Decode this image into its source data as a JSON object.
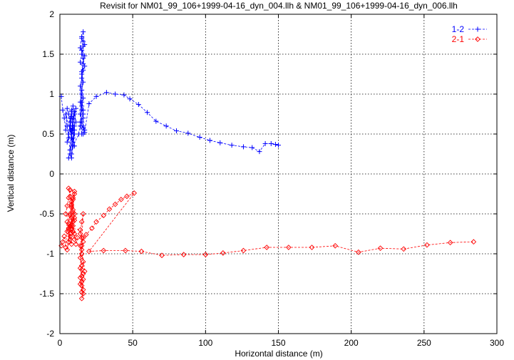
{
  "chart_data": {
    "type": "line",
    "title": "Revisit for NM01_99_106+1999-04-16_dyn_004.llh & NM01_99_106+1999-04-16_dyn_006.llh",
    "xlabel": "Horizontal distance (m)",
    "ylabel": "Vertical distance (m)",
    "xlim": [
      0,
      300
    ],
    "ylim": [
      -2,
      2
    ],
    "x_ticks": [
      0,
      50,
      100,
      150,
      200,
      250,
      300
    ],
    "y_ticks": [
      -2,
      -1.5,
      -1,
      -0.5,
      0,
      0.5,
      1,
      1.5,
      2
    ],
    "x_tick_labels": [
      "0",
      "50",
      "100",
      "150",
      "200",
      "250",
      "300"
    ],
    "y_tick_labels": [
      "-2",
      "-1.5",
      "-1",
      "-0.5",
      "0",
      "0.5",
      "1",
      "1.5",
      "2"
    ],
    "grid": true,
    "legend_position": "top-right",
    "series": [
      {
        "name": "1-2",
        "color": "#0000ff",
        "marker": "plus",
        "x": [
          1,
          2,
          3,
          4,
          5,
          6,
          7,
          8,
          9,
          10,
          11,
          6,
          7,
          8,
          9,
          10,
          5,
          6,
          7,
          8,
          9,
          10,
          4,
          5,
          6,
          7,
          8,
          9,
          7,
          8,
          9,
          10,
          7,
          8,
          9,
          6,
          7,
          8,
          9,
          10,
          11,
          8,
          9,
          10,
          7,
          8,
          9,
          13,
          14,
          15,
          14,
          15,
          16,
          14,
          15,
          14,
          15,
          16,
          14,
          15,
          16,
          15,
          16,
          17,
          15,
          16,
          17,
          15,
          16,
          15,
          16,
          15,
          16,
          16,
          17,
          16,
          15,
          14,
          15,
          16,
          17,
          14,
          15,
          16,
          15,
          16,
          15,
          16,
          17,
          20,
          25,
          32,
          38,
          44,
          48,
          54,
          60,
          66,
          73,
          80,
          88,
          96,
          103,
          110,
          118,
          126,
          132,
          137,
          141,
          145,
          148,
          150
        ],
        "y": [
          0.97,
          0.8,
          0.7,
          0.55,
          0.82,
          0.75,
          0.6,
          0.45,
          0.7,
          0.78,
          0.65,
          0.5,
          0.55,
          0.72,
          0.85,
          0.6,
          0.4,
          0.5,
          0.65,
          0.78,
          0.55,
          0.35,
          0.75,
          0.6,
          0.45,
          0.3,
          0.55,
          0.7,
          0.25,
          0.2,
          0.35,
          0.5,
          0.6,
          0.8,
          0.45,
          0.2,
          0.3,
          0.45,
          0.6,
          0.75,
          0.82,
          0.25,
          0.4,
          0.55,
          0.7,
          0.5,
          0.35,
          0.5,
          0.65,
          0.8,
          0.9,
          1.0,
          0.75,
          0.6,
          0.5,
          1.1,
          1.2,
          1.3,
          1.4,
          1.5,
          1.6,
          1.7,
          1.78,
          1.62,
          1.55,
          1.45,
          1.35,
          1.25,
          1.15,
          1.05,
          0.95,
          0.85,
          0.7,
          0.6,
          0.55,
          0.5,
          0.65,
          0.75,
          1.28,
          1.38,
          1.48,
          1.58,
          1.72,
          1.66,
          0.9,
          0.8,
          0.65,
          0.58,
          0.52,
          0.88,
          0.97,
          1.02,
          1.0,
          0.99,
          0.94,
          0.87,
          0.77,
          0.66,
          0.6,
          0.54,
          0.51,
          0.46,
          0.42,
          0.39,
          0.36,
          0.34,
          0.33,
          0.28,
          0.38,
          0.38,
          0.37,
          0.36
        ]
      },
      {
        "name": "2-1",
        "color": "#ff0000",
        "marker": "diamond",
        "x": [
          1,
          2,
          3,
          4,
          5,
          6,
          7,
          8,
          9,
          10,
          11,
          12,
          4,
          5,
          6,
          7,
          8,
          9,
          10,
          5,
          6,
          7,
          8,
          9,
          10,
          6,
          7,
          8,
          9,
          10,
          6,
          7,
          8,
          9,
          7,
          8,
          9,
          10,
          5,
          6,
          7,
          8,
          9,
          10,
          8,
          9,
          10,
          7,
          8,
          14,
          15,
          14,
          15,
          16,
          15,
          14,
          15,
          16,
          15,
          16,
          15,
          16,
          15,
          14,
          15,
          16,
          14,
          15,
          16,
          14,
          15,
          14,
          15,
          16,
          17,
          15,
          16,
          18,
          22,
          25,
          30,
          34,
          38,
          42,
          46,
          51,
          20,
          30,
          45,
          56,
          70,
          85,
          100,
          112,
          126,
          142,
          157,
          173,
          189,
          205,
          220,
          236,
          252,
          268,
          284
        ],
        "y": [
          -0.9,
          -0.85,
          -0.78,
          -0.92,
          -0.6,
          -0.7,
          -0.82,
          -0.55,
          -0.65,
          -0.75,
          -0.88,
          -0.8,
          -0.5,
          -0.4,
          -0.3,
          -0.2,
          -0.35,
          -0.45,
          -0.55,
          -0.72,
          -0.62,
          -0.52,
          -0.42,
          -0.32,
          -0.22,
          -0.18,
          -0.28,
          -0.38,
          -0.48,
          -0.58,
          -0.68,
          -0.78,
          -0.88,
          -0.6,
          -0.5,
          -0.4,
          -0.3,
          -0.25,
          -0.95,
          -0.85,
          -0.75,
          -0.65,
          -0.72,
          -0.82,
          -0.7,
          -0.6,
          -0.5,
          -0.65,
          -0.68,
          -0.7,
          -0.8,
          -0.9,
          -1.0,
          -1.1,
          -1.2,
          -1.3,
          -1.4,
          -1.5,
          -1.56,
          -1.45,
          -1.35,
          -1.25,
          -1.15,
          -1.05,
          -0.95,
          -0.85,
          -0.75,
          -0.6,
          -0.5,
          -1.18,
          -1.28,
          -1.38,
          -1.48,
          -1.32,
          -1.22,
          -0.9,
          -0.8,
          -0.76,
          -0.68,
          -0.6,
          -0.52,
          -0.44,
          -0.38,
          -0.32,
          -0.28,
          -0.24,
          -0.97,
          -0.96,
          -0.96,
          -0.97,
          -1.02,
          -1.01,
          -1.01,
          -0.99,
          -0.96,
          -0.92,
          -0.92,
          -0.92,
          -0.9,
          -0.98,
          -0.93,
          -0.94,
          -0.89,
          -0.86,
          -0.85
        ]
      }
    ]
  }
}
